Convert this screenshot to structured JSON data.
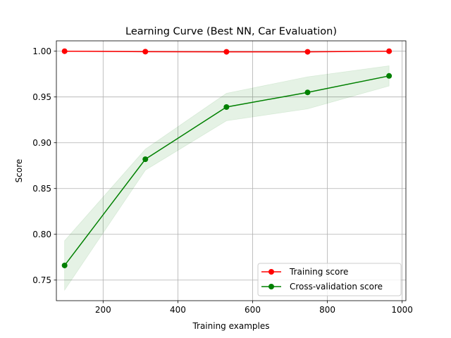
{
  "chart_data": {
    "type": "line",
    "title": "Learning Curve (Best NN, Car Evaluation)",
    "xlabel": "Training examples",
    "ylabel": "Score",
    "xlim": [
      75,
      1010
    ],
    "ylim": [
      0.7275,
      1.0113
    ],
    "xticks": [
      200,
      400,
      600,
      800,
      1000
    ],
    "yticks": [
      0.75,
      0.8,
      0.85,
      0.9,
      0.95,
      1.0
    ],
    "xtick_labels": [
      "200",
      "400",
      "600",
      "800",
      "1000"
    ],
    "ytick_labels": [
      "0.75",
      "0.80",
      "0.85",
      "0.90",
      "0.95",
      "1.00"
    ],
    "grid": true,
    "legend_position": "lower-right",
    "x": [
      97,
      313,
      530,
      747,
      965
    ],
    "series": [
      {
        "name": "Training score",
        "color": "#ff0000",
        "values": [
          1.0,
          0.9995,
          0.9993,
          0.9993,
          1.0
        ],
        "band_upper": [
          1.0,
          0.9998,
          0.9997,
          0.9997,
          1.0
        ],
        "band_lower": [
          0.9998,
          0.9991,
          0.9989,
          0.9989,
          0.9999
        ]
      },
      {
        "name": "Cross-validation score",
        "color": "#008000",
        "values": [
          0.766,
          0.882,
          0.939,
          0.955,
          0.973
        ],
        "band_upper": [
          0.793,
          0.893,
          0.954,
          0.972,
          0.984
        ],
        "band_lower": [
          0.739,
          0.87,
          0.924,
          0.937,
          0.962
        ]
      }
    ]
  }
}
